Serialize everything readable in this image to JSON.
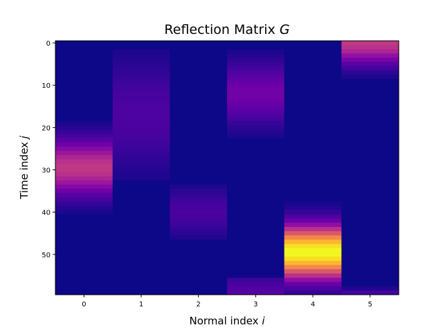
{
  "chart_data": {
    "type": "heatmap",
    "title": "Reflection Matrix",
    "title_symbol": "G",
    "xlabel": "Normal index",
    "xlabel_symbol": "i",
    "ylabel": "Time index",
    "ylabel_symbol": "j",
    "x_ticks": [
      0,
      1,
      2,
      3,
      4,
      5
    ],
    "y_ticks": [
      0,
      10,
      20,
      30,
      40,
      50
    ],
    "n_rows": 60,
    "n_cols": 6,
    "y_axis_inverted": true,
    "colormap": "plasma",
    "vmin": 0,
    "vmax": 1,
    "columns": [
      {
        "index": 0,
        "components": [
          {
            "center": 29.5,
            "sigma": 4.5,
            "amplitude": 0.45
          }
        ],
        "support": [
          17,
          42
        ]
      },
      {
        "index": 1,
        "components": [
          {
            "center": 17,
            "sigma": 9,
            "amplitude": 0.13
          }
        ],
        "support": [
          2,
          32
        ]
      },
      {
        "index": 2,
        "components": [
          {
            "center": 40,
            "sigma": 4,
            "amplitude": 0.12
          }
        ],
        "support": [
          34,
          46
        ]
      },
      {
        "index": 3,
        "components": [
          {
            "center": 12,
            "sigma": 5,
            "amplitude": 0.22
          },
          {
            "center": 59,
            "sigma": 3,
            "amplitude": 0.15
          }
        ],
        "support": [
          1,
          22
        ]
      },
      {
        "index": 4,
        "components": [
          {
            "center": 49.5,
            "sigma": 4.2,
            "amplitude": 1.0
          }
        ],
        "support": [
          36,
          60
        ]
      },
      {
        "index": 5,
        "components": [
          {
            "center": 0,
            "sigma": 3.5,
            "amplitude": 0.45
          },
          {
            "center": 59.5,
            "sigma": 1,
            "amplitude": 0.12
          }
        ],
        "support": [
          0,
          60
        ]
      }
    ]
  }
}
